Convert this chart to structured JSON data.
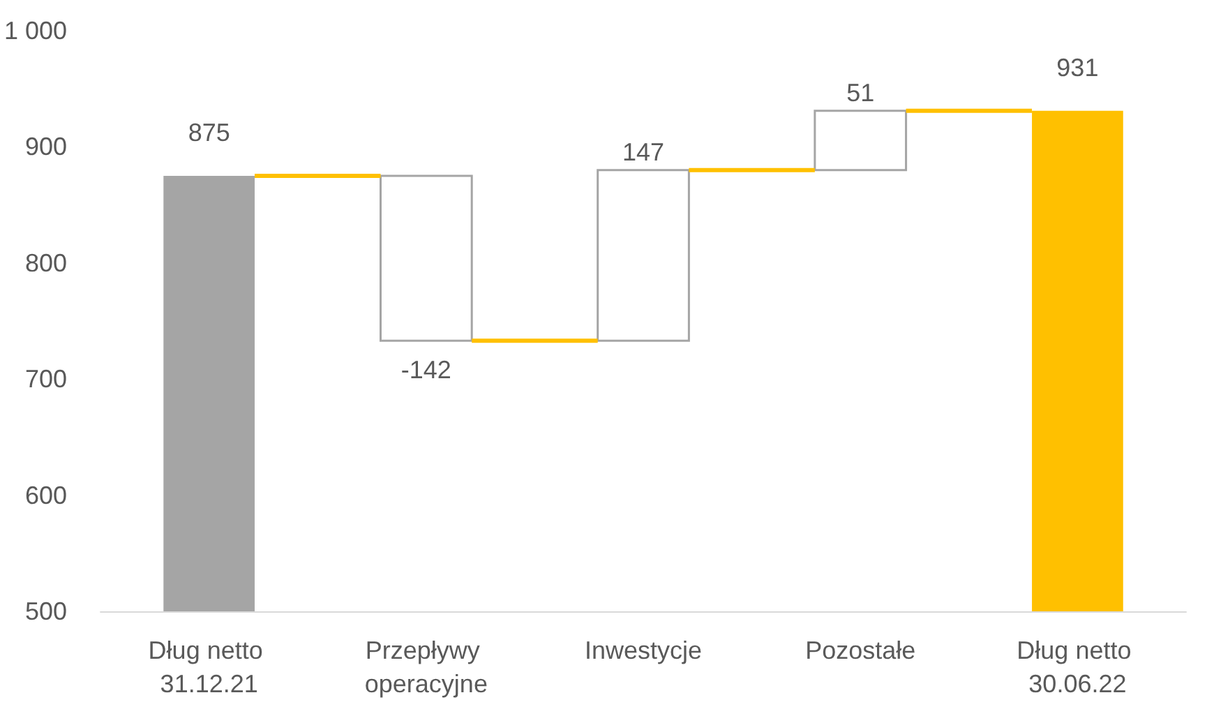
{
  "chart_data": {
    "type": "bar",
    "categories": [
      "Dług netto 31.12.21",
      "Przepływy operacyjne",
      "Inwestycje",
      "Pozostałe",
      "Dług netto 30.06.22"
    ],
    "values": [
      875,
      -142,
      147,
      51,
      931
    ],
    "base": [
      null,
      875,
      733,
      880,
      null
    ],
    "colors": [
      "#a5a5a5",
      "#ffffff",
      "#ffffff",
      "#ffffff",
      "#ffc000"
    ],
    "data_labels": true,
    "ylim": [
      500,
      1000
    ],
    "yticks": [
      500,
      600,
      700,
      800,
      900,
      {
        "value": 1000,
        "label": "1 000"
      }
    ],
    "grid": false
  }
}
